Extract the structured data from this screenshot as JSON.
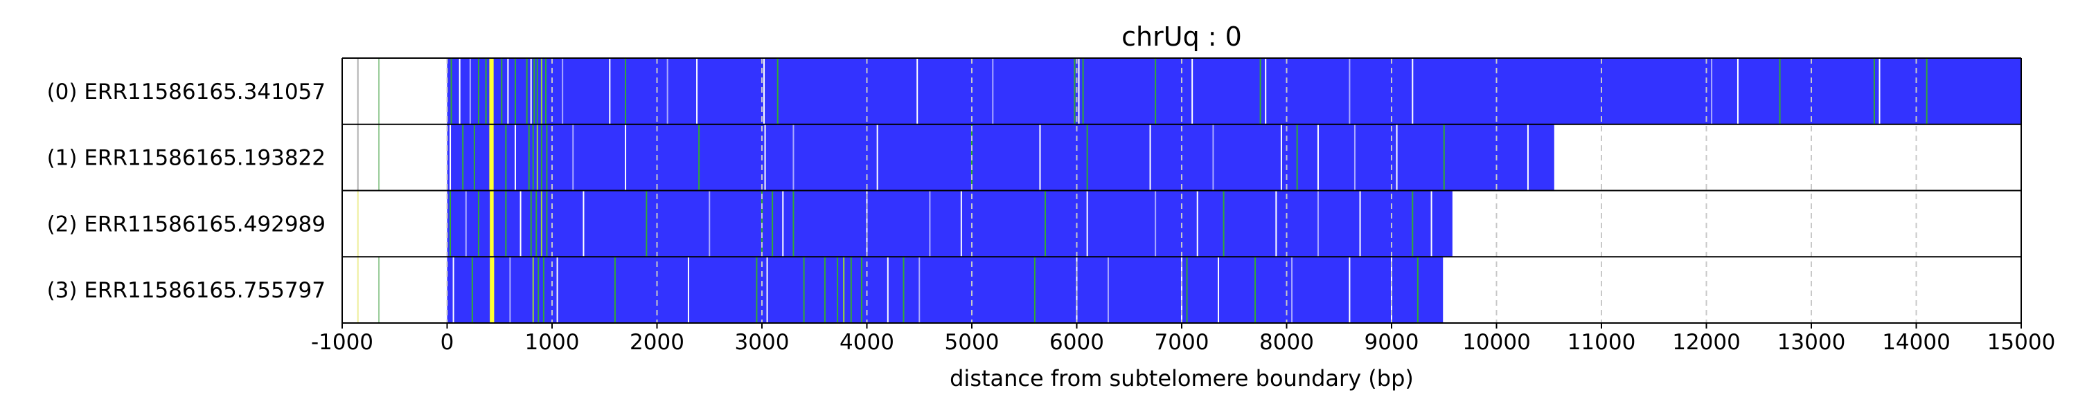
{
  "chart_data": {
    "type": "heatmap",
    "title": "chrUq : 0",
    "xlabel": "distance from subtelomere boundary (bp)",
    "ylabel": "",
    "xlim": [
      -1000,
      15000
    ],
    "x_ticks": [
      -1000,
      0,
      1000,
      2000,
      3000,
      4000,
      5000,
      6000,
      7000,
      8000,
      9000,
      10000,
      11000,
      12000,
      13000,
      14000,
      15000
    ],
    "x_tick_labels": [
      "-1000",
      "0",
      "1000",
      "2000",
      "3000",
      "4000",
      "5000",
      "6000",
      "7000",
      "8000",
      "9000",
      "10000",
      "11000",
      "12000",
      "13000",
      "14000",
      "15000"
    ],
    "grid": "vertical dashed",
    "fill_color": "#3333ff",
    "background_color": "#ffffff",
    "reads": [
      {
        "label": "(0) ERR11586165.341057",
        "start": 0,
        "end": 15000,
        "marks": [
          {
            "x": -850,
            "color": "#b0b0b0"
          },
          {
            "x": -650,
            "color": "#99cc99"
          },
          {
            "x": 40,
            "color": "#33aa33"
          },
          {
            "x": 120,
            "color": "#ffffff"
          },
          {
            "x": 220,
            "color": "#aaaaff"
          },
          {
            "x": 300,
            "color": "#33aa33"
          },
          {
            "x": 370,
            "color": "#33aa33"
          },
          {
            "x": 415,
            "color": "#ffff33"
          },
          {
            "x": 430,
            "color": "#ffff33"
          },
          {
            "x": 520,
            "color": "#33aa33"
          },
          {
            "x": 580,
            "color": "#ffffff"
          },
          {
            "x": 650,
            "color": "#33aa33"
          },
          {
            "x": 760,
            "color": "#33aa33"
          },
          {
            "x": 800,
            "color": "#ffffff"
          },
          {
            "x": 830,
            "color": "#33aa33"
          },
          {
            "x": 860,
            "color": "#33aa33"
          },
          {
            "x": 900,
            "color": "#99dd33"
          },
          {
            "x": 940,
            "color": "#33aa33"
          },
          {
            "x": 1100,
            "color": "#aaaaff"
          },
          {
            "x": 1550,
            "color": "#ffffff"
          },
          {
            "x": 1700,
            "color": "#33aa33"
          },
          {
            "x": 2100,
            "color": "#aaaaff"
          },
          {
            "x": 2380,
            "color": "#ffffff"
          },
          {
            "x": 3020,
            "color": "#ffffff"
          },
          {
            "x": 3150,
            "color": "#33aa33"
          },
          {
            "x": 4480,
            "color": "#ffffff"
          },
          {
            "x": 5200,
            "color": "#aaaaff"
          },
          {
            "x": 5980,
            "color": "#33aa33"
          },
          {
            "x": 6020,
            "color": "#ffffff"
          },
          {
            "x": 6060,
            "color": "#33aa33"
          },
          {
            "x": 6750,
            "color": "#33aa33"
          },
          {
            "x": 7100,
            "color": "#ffffff"
          },
          {
            "x": 7750,
            "color": "#33aa33"
          },
          {
            "x": 7800,
            "color": "#ffffff"
          },
          {
            "x": 8600,
            "color": "#aaaaff"
          },
          {
            "x": 9200,
            "color": "#ffffff"
          },
          {
            "x": 12050,
            "color": "#aaaaff"
          },
          {
            "x": 12300,
            "color": "#ffffff"
          },
          {
            "x": 12700,
            "color": "#33aa33"
          },
          {
            "x": 13600,
            "color": "#33aa33"
          },
          {
            "x": 13650,
            "color": "#ffffff"
          },
          {
            "x": 14100,
            "color": "#33aa33"
          }
        ]
      },
      {
        "label": "(1) ERR11586165.193822",
        "start": 0,
        "end": 10550,
        "marks": [
          {
            "x": -850,
            "color": "#b0b0b0"
          },
          {
            "x": -650,
            "color": "#99cc99"
          },
          {
            "x": 30,
            "color": "#ffffff"
          },
          {
            "x": 150,
            "color": "#33aa33"
          },
          {
            "x": 260,
            "color": "#33aa33"
          },
          {
            "x": 415,
            "color": "#ffff33"
          },
          {
            "x": 430,
            "color": "#ffff33"
          },
          {
            "x": 560,
            "color": "#33aa33"
          },
          {
            "x": 650,
            "color": "#ffffff"
          },
          {
            "x": 780,
            "color": "#33aa33"
          },
          {
            "x": 820,
            "color": "#33aa33"
          },
          {
            "x": 860,
            "color": "#99dd33"
          },
          {
            "x": 900,
            "color": "#33aa33"
          },
          {
            "x": 950,
            "color": "#33aa33"
          },
          {
            "x": 1200,
            "color": "#aaaaff"
          },
          {
            "x": 1700,
            "color": "#ffffff"
          },
          {
            "x": 2400,
            "color": "#33aa33"
          },
          {
            "x": 3030,
            "color": "#ffffff"
          },
          {
            "x": 3300,
            "color": "#aaaaff"
          },
          {
            "x": 4100,
            "color": "#ffffff"
          },
          {
            "x": 5000,
            "color": "#33aa33"
          },
          {
            "x": 5650,
            "color": "#ffffff"
          },
          {
            "x": 6100,
            "color": "#33aa33"
          },
          {
            "x": 6700,
            "color": "#ffffff"
          },
          {
            "x": 7300,
            "color": "#aaaaff"
          },
          {
            "x": 7950,
            "color": "#ffffff"
          },
          {
            "x": 8100,
            "color": "#33aa33"
          },
          {
            "x": 8300,
            "color": "#ffffff"
          },
          {
            "x": 8650,
            "color": "#aaaaff"
          },
          {
            "x": 9050,
            "color": "#ffffff"
          },
          {
            "x": 9500,
            "color": "#33aa33"
          },
          {
            "x": 10300,
            "color": "#ffffff"
          }
        ]
      },
      {
        "label": "(2) ERR11586165.492989",
        "start": 0,
        "end": 9580,
        "marks": [
          {
            "x": -850,
            "color": "#eeee99"
          },
          {
            "x": 30,
            "color": "#33aa33"
          },
          {
            "x": 180,
            "color": "#aaaaff"
          },
          {
            "x": 300,
            "color": "#33aa33"
          },
          {
            "x": 420,
            "color": "#ffff33"
          },
          {
            "x": 430,
            "color": "#ffff33"
          },
          {
            "x": 560,
            "color": "#33aa33"
          },
          {
            "x": 700,
            "color": "#ffffff"
          },
          {
            "x": 800,
            "color": "#33aa33"
          },
          {
            "x": 850,
            "color": "#33aa33"
          },
          {
            "x": 900,
            "color": "#99dd33"
          },
          {
            "x": 950,
            "color": "#33aa33"
          },
          {
            "x": 1300,
            "color": "#ffffff"
          },
          {
            "x": 1900,
            "color": "#33aa33"
          },
          {
            "x": 2500,
            "color": "#aaaaff"
          },
          {
            "x": 3000,
            "color": "#33aa33"
          },
          {
            "x": 3100,
            "color": "#33aa33"
          },
          {
            "x": 3200,
            "color": "#ffffff"
          },
          {
            "x": 3300,
            "color": "#33aa33"
          },
          {
            "x": 4000,
            "color": "#ffffff"
          },
          {
            "x": 4600,
            "color": "#aaaaff"
          },
          {
            "x": 4900,
            "color": "#ffffff"
          },
          {
            "x": 5700,
            "color": "#33aa33"
          },
          {
            "x": 6100,
            "color": "#ffffff"
          },
          {
            "x": 6750,
            "color": "#aaaaff"
          },
          {
            "x": 7150,
            "color": "#ffffff"
          },
          {
            "x": 7400,
            "color": "#33aa33"
          },
          {
            "x": 7900,
            "color": "#ffffff"
          },
          {
            "x": 8300,
            "color": "#aaaaff"
          },
          {
            "x": 8700,
            "color": "#ffffff"
          },
          {
            "x": 9200,
            "color": "#33aa33"
          },
          {
            "x": 9380,
            "color": "#ffffff"
          }
        ]
      },
      {
        "label": "(3) ERR11586165.755797",
        "start": 0,
        "end": 9490,
        "marks": [
          {
            "x": -850,
            "color": "#eeee99"
          },
          {
            "x": -650,
            "color": "#99cc99"
          },
          {
            "x": 60,
            "color": "#ffffff"
          },
          {
            "x": 240,
            "color": "#33aa33"
          },
          {
            "x": 420,
            "color": "#ffff33"
          },
          {
            "x": 435,
            "color": "#ffff33"
          },
          {
            "x": 600,
            "color": "#aaaaff"
          },
          {
            "x": 820,
            "color": "#99dd33"
          },
          {
            "x": 870,
            "color": "#33aa33"
          },
          {
            "x": 920,
            "color": "#33aa33"
          },
          {
            "x": 1050,
            "color": "#ffffff"
          },
          {
            "x": 1600,
            "color": "#33aa33"
          },
          {
            "x": 2300,
            "color": "#ffffff"
          },
          {
            "x": 2950,
            "color": "#33aa33"
          },
          {
            "x": 3050,
            "color": "#ffffff"
          },
          {
            "x": 3400,
            "color": "#33aa33"
          },
          {
            "x": 3600,
            "color": "#33aa33"
          },
          {
            "x": 3720,
            "color": "#33aa33"
          },
          {
            "x": 3780,
            "color": "#99dd33"
          },
          {
            "x": 3850,
            "color": "#33aa33"
          },
          {
            "x": 3950,
            "color": "#33aa33"
          },
          {
            "x": 4200,
            "color": "#ffffff"
          },
          {
            "x": 4350,
            "color": "#33aa33"
          },
          {
            "x": 4500,
            "color": "#aaaaff"
          },
          {
            "x": 5600,
            "color": "#33aa33"
          },
          {
            "x": 6000,
            "color": "#ffffff"
          },
          {
            "x": 6300,
            "color": "#aaaaff"
          },
          {
            "x": 7000,
            "color": "#ffffff"
          },
          {
            "x": 7050,
            "color": "#33aa33"
          },
          {
            "x": 7350,
            "color": "#ffffff"
          },
          {
            "x": 7700,
            "color": "#33aa33"
          },
          {
            "x": 8050,
            "color": "#aaaaff"
          },
          {
            "x": 8600,
            "color": "#ffffff"
          },
          {
            "x": 9000,
            "color": "#ffffff"
          },
          {
            "x": 9250,
            "color": "#33aa33"
          }
        ]
      }
    ]
  }
}
